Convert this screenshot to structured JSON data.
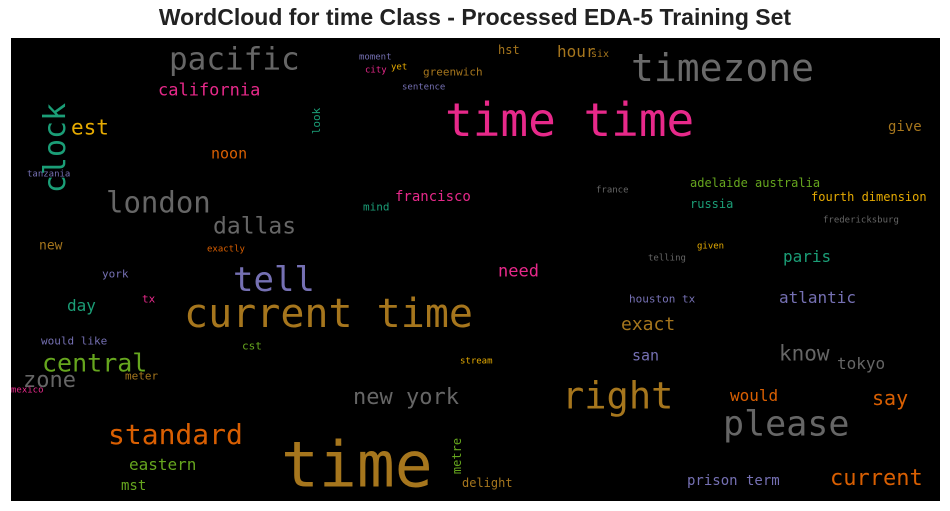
{
  "title": "WordCloud for time Class - Processed EDA-5 Training Set",
  "words": [
    {
      "text": "time time",
      "color": "#e7298a"
    },
    {
      "text": "timezone",
      "color": "#6a6a6a"
    },
    {
      "text": "pacific",
      "color": "#666666"
    },
    {
      "text": "clock",
      "color": "#1b9e77"
    },
    {
      "text": "california",
      "color": "#e7298a"
    },
    {
      "text": "est",
      "color": "#e6ab02"
    },
    {
      "text": "noon",
      "color": "#d95f02"
    },
    {
      "text": "hour",
      "color": "#a6761d"
    },
    {
      "text": "hst",
      "color": "#a6761d"
    },
    {
      "text": "six",
      "color": "#a6761d"
    },
    {
      "text": "moment",
      "color": "#7570b3"
    },
    {
      "text": "city",
      "color": "#e7298a"
    },
    {
      "text": "yet",
      "color": "#e6ab02"
    },
    {
      "text": "greenwich",
      "color": "#a6761d"
    },
    {
      "text": "sentence",
      "color": "#7570b3"
    },
    {
      "text": "look",
      "color": "#1b9e77"
    },
    {
      "text": "give",
      "color": "#a6761d"
    },
    {
      "text": "tanzania",
      "color": "#7570b3"
    },
    {
      "text": "london",
      "color": "#666666"
    },
    {
      "text": "dallas",
      "color": "#666666"
    },
    {
      "text": "mind",
      "color": "#1b9e77"
    },
    {
      "text": "francisco",
      "color": "#e7298a"
    },
    {
      "text": "france",
      "color": "#666666"
    },
    {
      "text": "adelaide australia",
      "color": "#66a61e"
    },
    {
      "text": "fourth dimension",
      "color": "#e6ab02"
    },
    {
      "text": "russia",
      "color": "#1b9e77"
    },
    {
      "text": "fredericksburg",
      "color": "#666666"
    },
    {
      "text": "new",
      "color": "#a6761d"
    },
    {
      "text": "exactly",
      "color": "#d95f02"
    },
    {
      "text": "tell",
      "color": "#7570b3"
    },
    {
      "text": "given",
      "color": "#e6ab02"
    },
    {
      "text": "telling",
      "color": "#666666"
    },
    {
      "text": "paris",
      "color": "#1b9e77"
    },
    {
      "text": "york",
      "color": "#7570b3"
    },
    {
      "text": "need",
      "color": "#e7298a"
    },
    {
      "text": "day",
      "color": "#1b9e77"
    },
    {
      "text": "tx",
      "color": "#e7298a"
    },
    {
      "text": "current time",
      "color": "#a6761d"
    },
    {
      "text": "houston tx",
      "color": "#7570b3"
    },
    {
      "text": "atlantic",
      "color": "#7570b3"
    },
    {
      "text": "exact",
      "color": "#a6761d"
    },
    {
      "text": "would like",
      "color": "#7570b3"
    },
    {
      "text": "cst",
      "color": "#66a61e"
    },
    {
      "text": "central",
      "color": "#66a61e"
    },
    {
      "text": "san",
      "color": "#7570b3"
    },
    {
      "text": "know",
      "color": "#666666"
    },
    {
      "text": "tokyo",
      "color": "#666666"
    },
    {
      "text": "stream",
      "color": "#e6ab02"
    },
    {
      "text": "zone",
      "color": "#666666"
    },
    {
      "text": "meter",
      "color": "#a6761d"
    },
    {
      "text": "mexico",
      "color": "#e7298a"
    },
    {
      "text": "new york",
      "color": "#666666"
    },
    {
      "text": "right",
      "color": "#a6761d"
    },
    {
      "text": "would",
      "color": "#d95f02"
    },
    {
      "text": "say",
      "color": "#d95f02"
    },
    {
      "text": "please",
      "color": "#666666"
    },
    {
      "text": "standard",
      "color": "#d95f02"
    },
    {
      "text": "time",
      "color": "#a6761d"
    },
    {
      "text": "metre",
      "color": "#66a61e"
    },
    {
      "text": "eastern",
      "color": "#66a61e"
    },
    {
      "text": "mst",
      "color": "#66a61e"
    },
    {
      "text": "delight",
      "color": "#a6761d"
    },
    {
      "text": "prison term",
      "color": "#7570b3"
    },
    {
      "text": "current",
      "color": "#d95f02"
    }
  ]
}
